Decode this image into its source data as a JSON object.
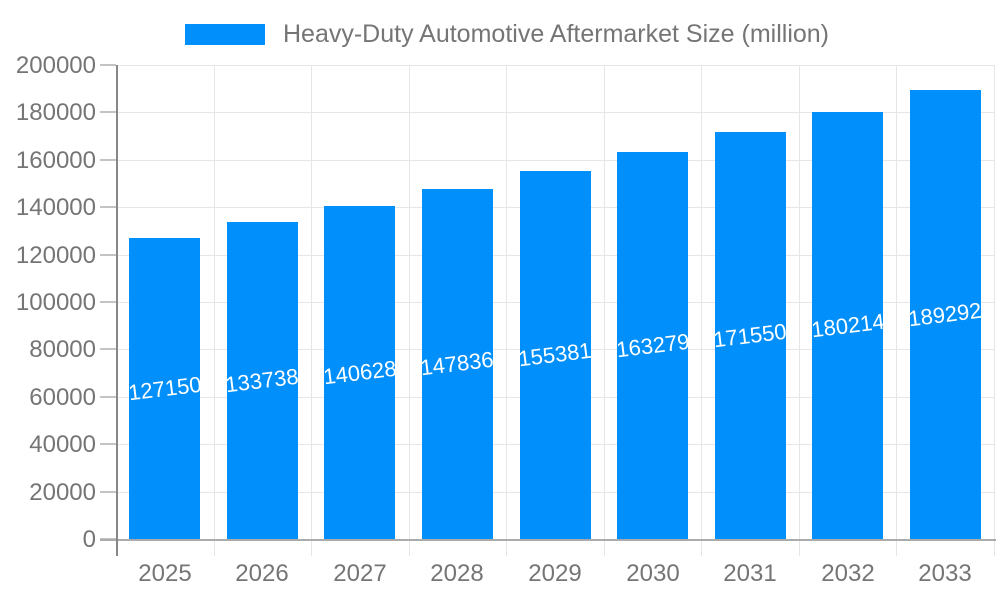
{
  "chart_data": {
    "type": "bar",
    "title": "Heavy-Duty Automotive Aftermarket Size (million)",
    "categories": [
      "2025",
      "2026",
      "2027",
      "2028",
      "2029",
      "2030",
      "2031",
      "2032",
      "2033"
    ],
    "series": [
      {
        "name": "Heavy-Duty Automotive Aftermarket Size (million)",
        "values": [
          127150,
          133738,
          140628,
          147836,
          155381,
          163279,
          171550,
          180214,
          189292
        ]
      }
    ],
    "value_labels": [
      "127150",
      "133738",
      "140628",
      "147836",
      "155381",
      "163279",
      "171550",
      "180214",
      "189292"
    ],
    "xlabel": "",
    "ylabel": "",
    "ylim": [
      0,
      200000
    ],
    "ytick_step": 20000,
    "ytick_labels": [
      "0",
      "20000",
      "40000",
      "60000",
      "80000",
      "100000",
      "120000",
      "140000",
      "160000",
      "180000",
      "200000"
    ],
    "grid": true,
    "legend_position": "top",
    "colors": {
      "bar": "#008FFB",
      "value_label": "#ffffff",
      "axis_text": "#757575",
      "legend_text": "#757575",
      "gridline": "#e6e6e6",
      "y_axis_line": "#878787",
      "x_axis_line": "#ababab"
    }
  }
}
